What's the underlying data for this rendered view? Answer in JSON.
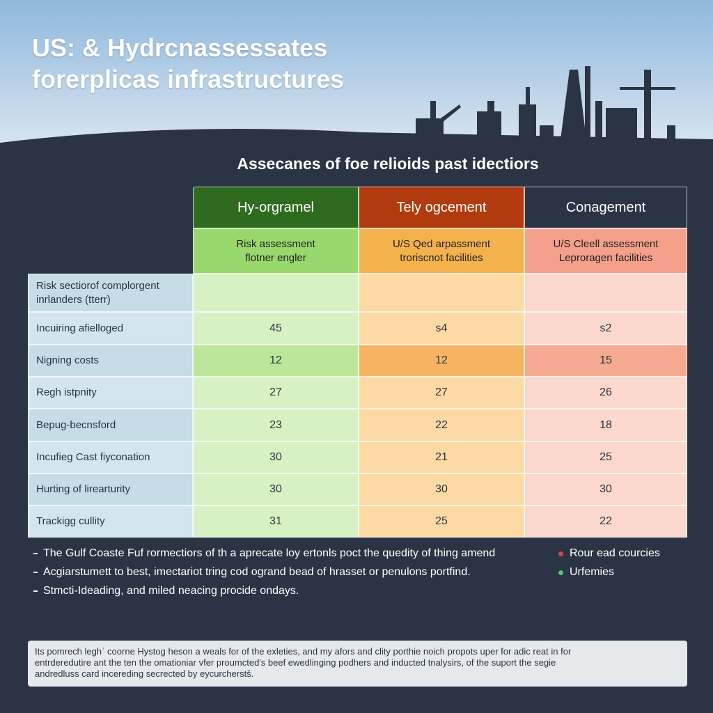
{
  "header": {
    "title_lines": [
      "US: & Hydrcnassessates",
      "forerplicas infrastructures"
    ]
  },
  "table": {
    "title": "Assecanes of foe relioids past idectiors",
    "columns": [
      "Hy-orgramel",
      "Tely ogcement",
      "Conagement"
    ],
    "subheaders": [
      [
        "Risk assessment",
        "flotner engler"
      ],
      [
        "U/S Qed arpassment",
        "troriscnot facilities"
      ],
      [
        "U/S Cleell assessment",
        "Leproragen facilities"
      ]
    ],
    "rows": [
      {
        "label": [
          "Risk sectiorof complorgent",
          "inrlanders (tterr)"
        ],
        "values": []
      },
      {
        "label": [
          "Incuiring afielloged"
        ],
        "values": [
          "45",
          "s4",
          "s2"
        ]
      },
      {
        "label": [
          "Nigning costs"
        ],
        "values": [
          "12",
          "12",
          "15"
        ]
      },
      {
        "label": [
          "Regh istpnity"
        ],
        "values": [
          "27",
          "27",
          "26"
        ]
      },
      {
        "label": [
          "Bepug-becnsford"
        ],
        "values": [
          "23",
          "22",
          "18"
        ]
      },
      {
        "label": [
          "Incufieg Cast fiyconation"
        ],
        "values": [
          "30",
          "21",
          "25"
        ]
      },
      {
        "label": [
          "Hurting of lirearturity"
        ],
        "values": [
          "30",
          "30",
          "30"
        ]
      },
      {
        "label": [
          "Trackigg cullity"
        ],
        "values": [
          "31",
          "25",
          "22"
        ]
      }
    ]
  },
  "notes": [
    "The  Gulf Coaste Fuf rormectiors of th a aprecate loy ertonls poct the quedity of thing amend",
    "Acgiarstumett to best, imectariot tring cod ogrand bead of hrasset or penulons portfind.",
    "Stmcti-Ideading, and miled neacing procide ondays."
  ],
  "legend": [
    "Rour ead courcies",
    "Urfemies"
  ],
  "footer": [
    "Its pomrech leghʿ coorne Hystog heson a weals for of the exleties, and my afors and clity porthie noich propots uper for adic reat in for",
    "entrderedutire ant the ten the omationiar vfer proumcted's beef ewedlinging podhers and inducted tnalysirs, of the suport the segie",
    "andredluss card incereding secrected by eycurcherstš."
  ]
}
